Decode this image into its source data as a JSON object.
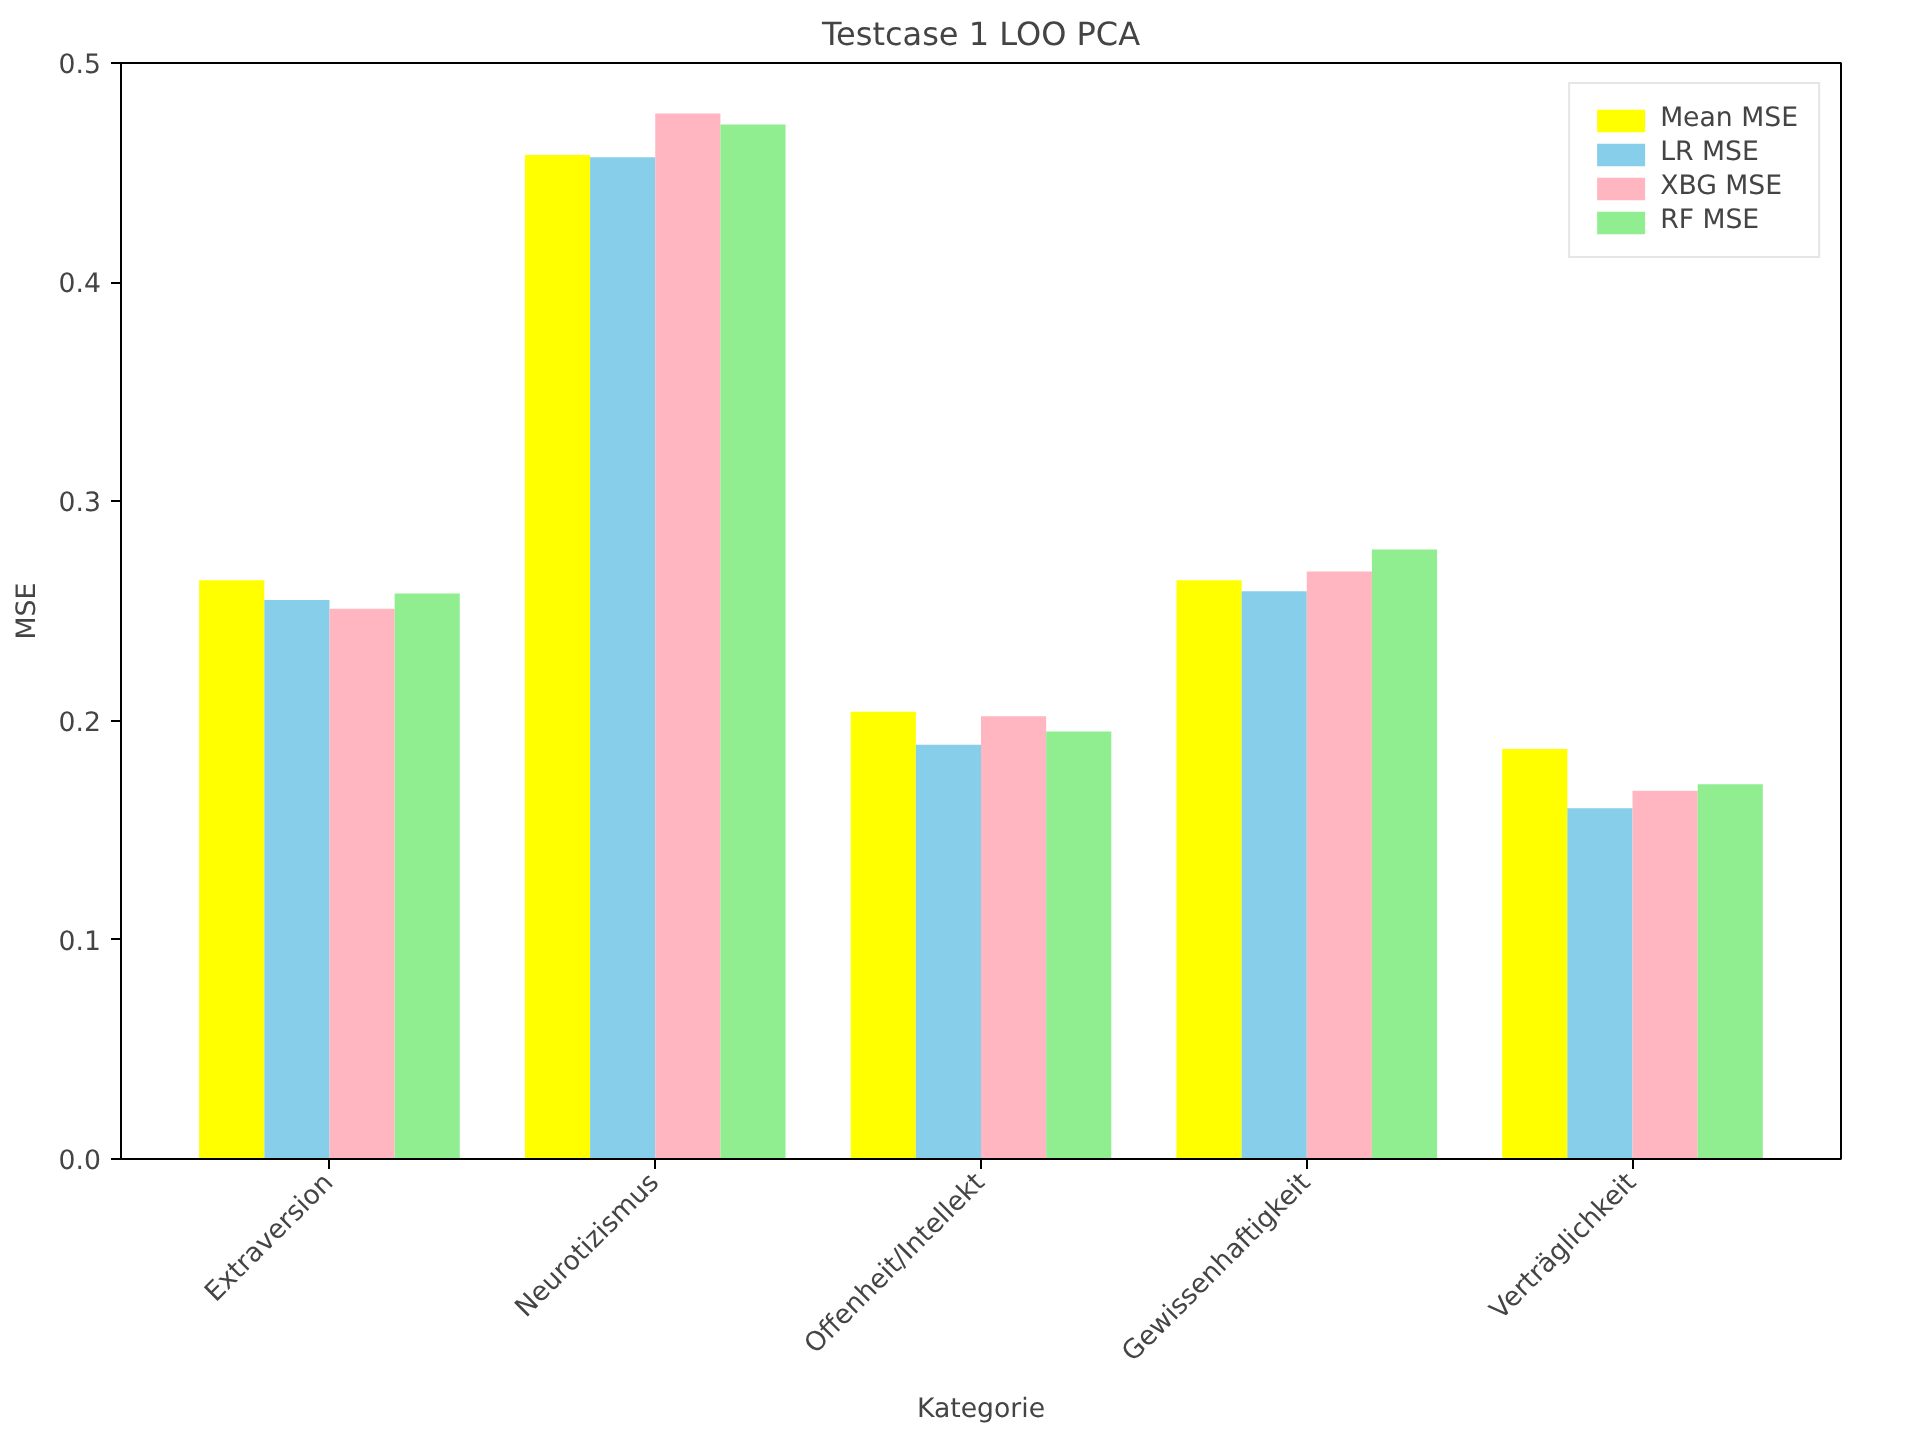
{
  "chart_data": {
    "type": "bar",
    "title": "Testcase 1 LOO PCA",
    "xlabel": "Kategorie",
    "ylabel": "MSE",
    "categories": [
      "Extraversion",
      "Neurotizismus",
      "Offenheit/Intellekt",
      "Gewissenhaftigkeit",
      "Verträglichkeit"
    ],
    "series": [
      {
        "name": "Mean MSE",
        "color": "#ffff00",
        "values": [
          0.264,
          0.458,
          0.204,
          0.264,
          0.187
        ]
      },
      {
        "name": "LR MSE",
        "color": "#87ceeb",
        "values": [
          0.255,
          0.457,
          0.189,
          0.259,
          0.16
        ]
      },
      {
        "name": "XBG MSE",
        "color": "#ffb6c1",
        "values": [
          0.251,
          0.477,
          0.202,
          0.268,
          0.168
        ]
      },
      {
        "name": "RF MSE",
        "color": "#90ee90",
        "values": [
          0.258,
          0.472,
          0.195,
          0.278,
          0.171
        ]
      }
    ],
    "ylim": [
      0,
      0.5
    ],
    "yticks": [
      {
        "value": 0,
        "label": "0.0"
      },
      0.1,
      0.2,
      0.3,
      0.4,
      0.5
    ],
    "grid": false,
    "legend": "top right"
  }
}
